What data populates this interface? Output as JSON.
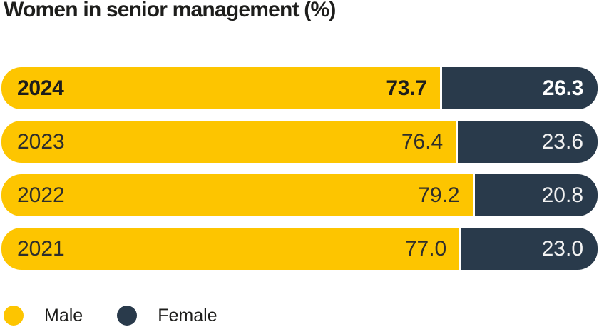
{
  "title": "Women in senior management (%)",
  "colors": {
    "male": "#FDC500",
    "female": "#293A4B",
    "title_text": "#1D1D1B",
    "value_text_on_yellow": "#2E2E2C",
    "value_text_on_navy": "#F2F2F2",
    "background": "#FFFFFF"
  },
  "chart_data": {
    "type": "bar",
    "orientation": "horizontal",
    "stacked": true,
    "title": "Women in senior management (%)",
    "categories": [
      "2024",
      "2023",
      "2022",
      "2021"
    ],
    "series": [
      {
        "name": "Male",
        "color": "#FDC500",
        "values": [
          73.7,
          76.4,
          79.2,
          77.0
        ]
      },
      {
        "name": "Female",
        "color": "#293A4B",
        "values": [
          26.3,
          23.6,
          20.8,
          23.0
        ]
      }
    ],
    "value_labels_decimals": 1,
    "highlighted_category": "2024",
    "axis_range": [
      0,
      100
    ],
    "grid": false,
    "legend_position": "bottom-left"
  },
  "legend": {
    "items": [
      {
        "label": "Male",
        "color": "#FDC500"
      },
      {
        "label": "Female",
        "color": "#293A4B"
      }
    ]
  }
}
